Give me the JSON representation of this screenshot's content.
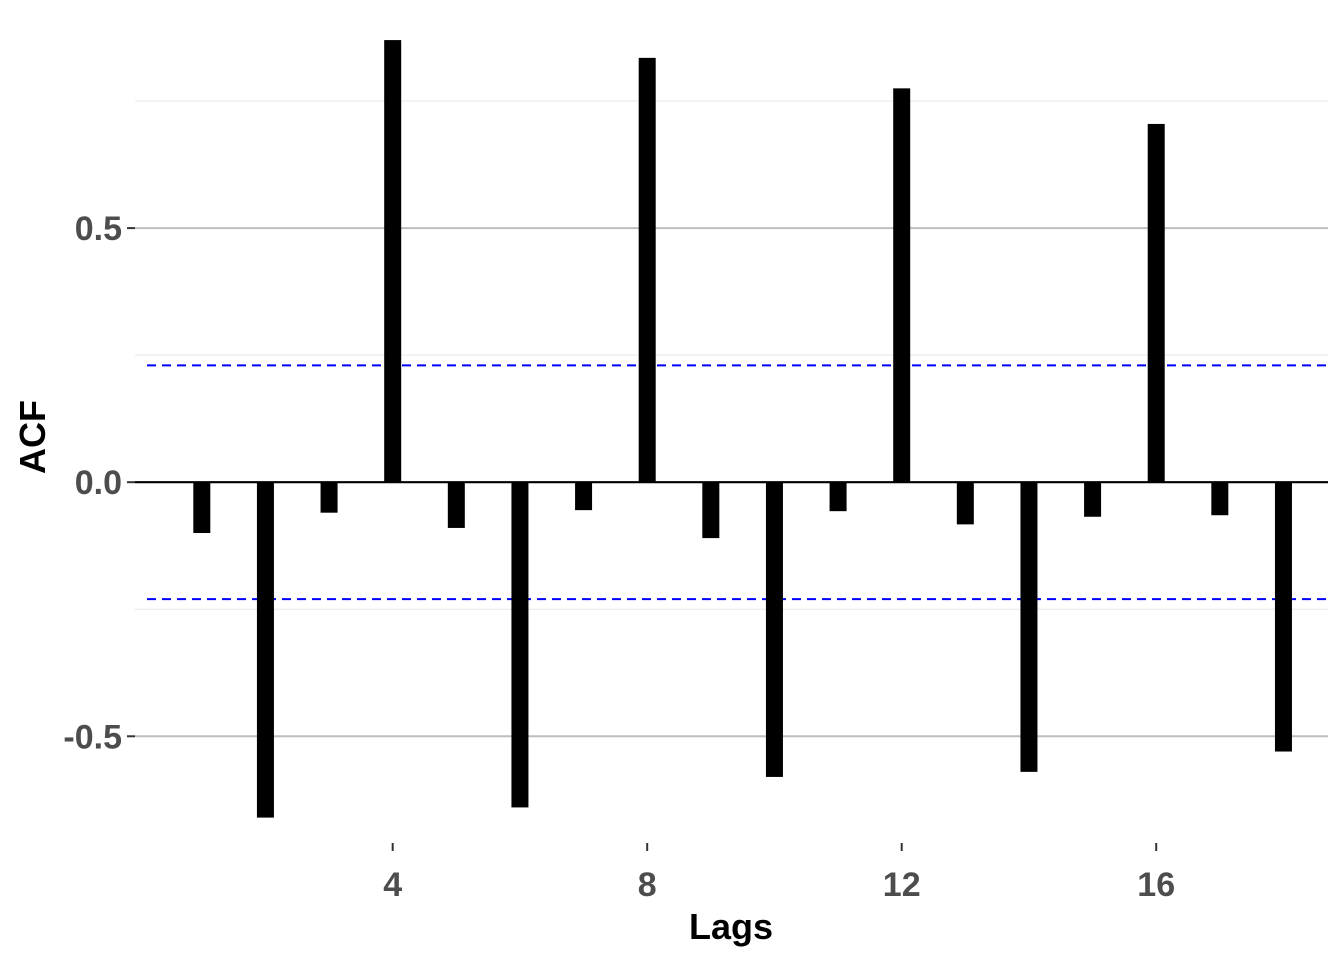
{
  "chart_data": {
    "type": "bar",
    "xlabel": "Lags",
    "ylabel": "ACF",
    "x": [
      1,
      2,
      3,
      4,
      5,
      6,
      7,
      8,
      9,
      10,
      11,
      12,
      13,
      14,
      15,
      16,
      17,
      18
    ],
    "values": [
      -0.1,
      -0.66,
      -0.06,
      0.87,
      -0.09,
      -0.64,
      -0.055,
      0.835,
      -0.11,
      -0.58,
      -0.057,
      0.775,
      -0.083,
      -0.57,
      -0.068,
      0.705,
      -0.065,
      -0.53
    ],
    "confidence_bounds": [
      0.23,
      -0.23
    ],
    "xlim": [
      -0.05,
      18.7
    ],
    "ylim": [
      -0.71,
      0.88
    ],
    "x_ticks": [
      4,
      8,
      12,
      16
    ],
    "x_tick_labels": [
      "4",
      "8",
      "12",
      "16"
    ],
    "y_ticks": [
      -0.5,
      0.0,
      0.5
    ],
    "y_tick_labels": [
      "-0.5",
      "0.0",
      "0.5"
    ],
    "grid": true,
    "legend": "none",
    "colors": {
      "bars": "#000000",
      "confidence": "#0000ff",
      "grid_major": "#bebebe",
      "grid_minor": "#ebebeb",
      "zero_line": "#000000"
    }
  }
}
